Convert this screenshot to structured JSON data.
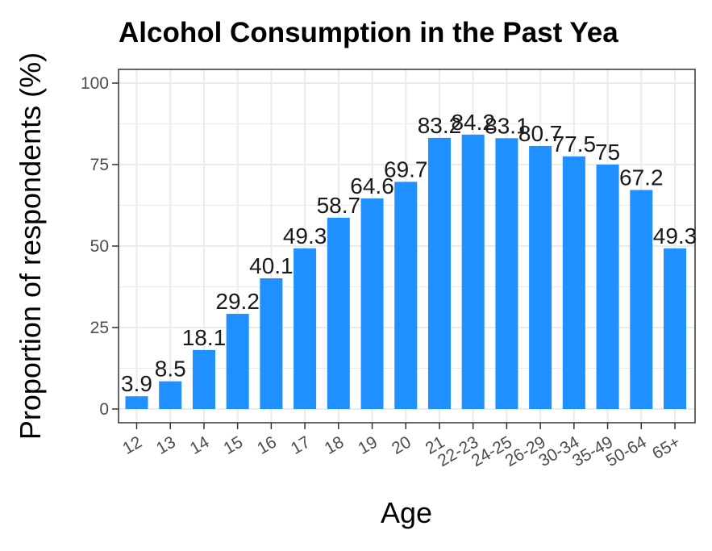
{
  "chart_data": {
    "type": "bar",
    "title": "Alcohol Consumption in the Past Yea",
    "xlabel": "Age",
    "ylabel": "Proportion of respondents (%)",
    "categories": [
      "12",
      "13",
      "14",
      "15",
      "16",
      "17",
      "18",
      "19",
      "20",
      "21",
      "22-23",
      "24-25",
      "26-29",
      "30-34",
      "35-49",
      "50-64",
      "65+"
    ],
    "values": [
      3.9,
      8.5,
      18.1,
      29.2,
      40.1,
      49.3,
      58.7,
      64.6,
      69.7,
      83.2,
      84.2,
      83.1,
      80.7,
      77.5,
      75,
      67.2,
      49.3
    ],
    "data_labels": [
      "3.9",
      "8.5",
      "18.1",
      "29.2",
      "40.1",
      "49.3",
      "58.7",
      "64.6",
      "69.7",
      "83.2",
      "84.2",
      "83.1",
      "80.7",
      "77.5",
      "75",
      "67.2",
      "49.3"
    ],
    "yticks": [
      0,
      25,
      50,
      75,
      100
    ],
    "ylim": [
      0,
      100
    ],
    "grid": true,
    "bar_color": "#1e90ff",
    "grid_color": "#ebebeb",
    "panel_border_color": "#333333"
  }
}
